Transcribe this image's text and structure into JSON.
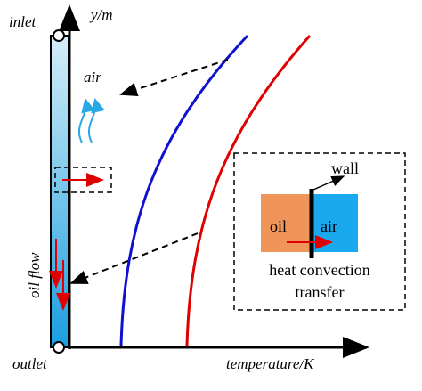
{
  "labels": {
    "inlet": "inlet",
    "y_axis": "y/m",
    "air_stream": "air",
    "oil_flow": "oil flow",
    "outlet": "outlet",
    "x_axis": "temperature/K"
  },
  "inset": {
    "wall": "wall",
    "oil": "oil",
    "air": "air",
    "caption_line1": "heat convection",
    "caption_line2": "transfer"
  }
}
